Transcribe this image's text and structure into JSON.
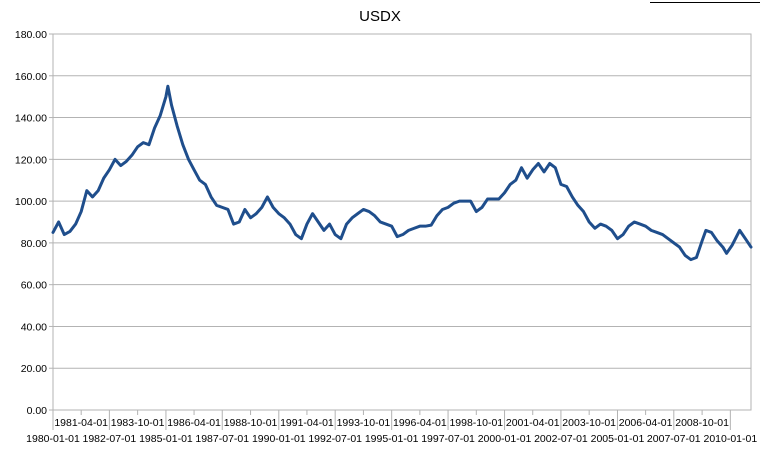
{
  "chart_data": {
    "type": "line",
    "title": "USDX",
    "xlabel": "",
    "ylabel": "",
    "ylim": [
      0,
      180
    ],
    "yticks": [
      "0.00",
      "20.00",
      "40.00",
      "60.00",
      "80.00",
      "100.00",
      "120.00",
      "140.00",
      "160.00",
      "180.00"
    ],
    "x_tick_labels_row1": [
      "1981-04-01",
      "1983-10-01",
      "1986-04-01",
      "1988-10-01",
      "1991-04-01",
      "1993-10-01",
      "1996-04-01",
      "1998-10-01",
      "2001-04-01",
      "2003-10-01",
      "2006-04-01",
      "2008-10-01"
    ],
    "x_tick_labels_row2": [
      "1980-01-01",
      "1982-07-01",
      "1985-01-01",
      "1987-07-01",
      "1990-01-01",
      "1992-07-01",
      "1995-01-01",
      "1997-07-01",
      "2000-01-01",
      "2002-07-01",
      "2005-01-01",
      "2007-07-01",
      "2010-01-01"
    ],
    "x_range": [
      "1980-01-01",
      "2010-12-01"
    ],
    "grid": true,
    "legend": "none",
    "line_color": "#1f4e8c",
    "series": [
      {
        "points": [
          [
            "1980-01-01",
            85.0
          ],
          [
            "1980-04-01",
            90.0
          ],
          [
            "1980-07-01",
            84.0
          ],
          [
            "1980-10-01",
            85.5
          ],
          [
            "1981-01-01",
            89.0
          ],
          [
            "1981-04-01",
            95.0
          ],
          [
            "1981-07-01",
            105.0
          ],
          [
            "1981-10-01",
            102.0
          ],
          [
            "1982-01-01",
            105.0
          ],
          [
            "1982-04-01",
            111.0
          ],
          [
            "1982-07-01",
            115.0
          ],
          [
            "1982-10-01",
            120.0
          ],
          [
            "1983-01-01",
            117.0
          ],
          [
            "1983-04-01",
            119.0
          ],
          [
            "1983-07-01",
            122.0
          ],
          [
            "1983-10-01",
            126.0
          ],
          [
            "1984-01-01",
            128.0
          ],
          [
            "1984-04-01",
            127.0
          ],
          [
            "1984-07-01",
            135.0
          ],
          [
            "1984-10-01",
            141.0
          ],
          [
            "1985-01-01",
            150.0
          ],
          [
            "1985-02-01",
            155.0
          ],
          [
            "1985-04-01",
            146.0
          ],
          [
            "1985-07-01",
            136.0
          ],
          [
            "1985-10-01",
            127.0
          ],
          [
            "1986-01-01",
            120.0
          ],
          [
            "1986-04-01",
            115.0
          ],
          [
            "1986-07-01",
            110.0
          ],
          [
            "1986-10-01",
            108.0
          ],
          [
            "1987-01-01",
            102.0
          ],
          [
            "1987-04-01",
            98.0
          ],
          [
            "1987-07-01",
            97.0
          ],
          [
            "1987-10-01",
            96.0
          ],
          [
            "1988-01-01",
            89.0
          ],
          [
            "1988-04-01",
            90.0
          ],
          [
            "1988-07-01",
            96.0
          ],
          [
            "1988-10-01",
            92.0
          ],
          [
            "1989-01-01",
            94.0
          ],
          [
            "1989-04-01",
            97.0
          ],
          [
            "1989-07-01",
            102.0
          ],
          [
            "1989-10-01",
            97.0
          ],
          [
            "1990-01-01",
            94.0
          ],
          [
            "1990-04-01",
            92.0
          ],
          [
            "1990-07-01",
            89.0
          ],
          [
            "1990-10-01",
            84.0
          ],
          [
            "1991-01-01",
            82.0
          ],
          [
            "1991-04-01",
            89.0
          ],
          [
            "1991-07-01",
            94.0
          ],
          [
            "1991-10-01",
            90.0
          ],
          [
            "1992-01-01",
            86.0
          ],
          [
            "1992-04-01",
            89.0
          ],
          [
            "1992-07-01",
            84.0
          ],
          [
            "1992-10-01",
            82.0
          ],
          [
            "1993-01-01",
            89.0
          ],
          [
            "1993-04-01",
            92.0
          ],
          [
            "1993-07-01",
            94.0
          ],
          [
            "1993-10-01",
            96.0
          ],
          [
            "1994-01-01",
            95.0
          ],
          [
            "1994-04-01",
            93.0
          ],
          [
            "1994-07-01",
            90.0
          ],
          [
            "1994-10-01",
            89.0
          ],
          [
            "1995-01-01",
            88.0
          ],
          [
            "1995-04-01",
            83.0
          ],
          [
            "1995-07-01",
            84.0
          ],
          [
            "1995-10-01",
            86.0
          ],
          [
            "1996-01-01",
            87.0
          ],
          [
            "1996-04-01",
            88.0
          ],
          [
            "1996-07-01",
            88.0
          ],
          [
            "1996-10-01",
            88.5
          ],
          [
            "1997-01-01",
            93.0
          ],
          [
            "1997-04-01",
            96.0
          ],
          [
            "1997-07-01",
            97.0
          ],
          [
            "1997-10-01",
            99.0
          ],
          [
            "1998-01-01",
            100.0
          ],
          [
            "1998-04-01",
            100.0
          ],
          [
            "1998-07-01",
            100.0
          ],
          [
            "1998-10-01",
            95.0
          ],
          [
            "1999-01-01",
            97.0
          ],
          [
            "1999-04-01",
            101.0
          ],
          [
            "1999-07-01",
            101.0
          ],
          [
            "1999-10-01",
            101.0
          ],
          [
            "2000-01-01",
            104.0
          ],
          [
            "2000-04-01",
            108.0
          ],
          [
            "2000-07-01",
            110.0
          ],
          [
            "2000-10-01",
            116.0
          ],
          [
            "2001-01-01",
            111.0
          ],
          [
            "2001-04-01",
            115.0
          ],
          [
            "2001-07-01",
            118.0
          ],
          [
            "2001-10-01",
            114.0
          ],
          [
            "2002-01-01",
            118.0
          ],
          [
            "2002-04-01",
            116.0
          ],
          [
            "2002-07-01",
            108.0
          ],
          [
            "2002-10-01",
            107.0
          ],
          [
            "2003-01-01",
            102.0
          ],
          [
            "2003-04-01",
            98.0
          ],
          [
            "2003-07-01",
            95.0
          ],
          [
            "2003-10-01",
            90.0
          ],
          [
            "2004-01-01",
            87.0
          ],
          [
            "2004-04-01",
            89.0
          ],
          [
            "2004-07-01",
            88.0
          ],
          [
            "2004-10-01",
            86.0
          ],
          [
            "2005-01-01",
            82.0
          ],
          [
            "2005-04-01",
            84.0
          ],
          [
            "2005-07-01",
            88.0
          ],
          [
            "2005-10-01",
            90.0
          ],
          [
            "2006-01-01",
            89.0
          ],
          [
            "2006-04-01",
            88.0
          ],
          [
            "2006-07-01",
            86.0
          ],
          [
            "2006-10-01",
            85.0
          ],
          [
            "2007-01-01",
            84.0
          ],
          [
            "2007-04-01",
            82.0
          ],
          [
            "2007-07-01",
            80.0
          ],
          [
            "2007-10-01",
            78.0
          ],
          [
            "2008-01-01",
            74.0
          ],
          [
            "2008-04-01",
            72.0
          ],
          [
            "2008-07-01",
            73.0
          ],
          [
            "2008-10-01",
            81.0
          ],
          [
            "2008-12-01",
            86.0
          ],
          [
            "2009-03-01",
            85.0
          ],
          [
            "2009-06-01",
            81.0
          ],
          [
            "2009-09-01",
            78.0
          ],
          [
            "2009-11-01",
            75.0
          ],
          [
            "2010-02-01",
            79.0
          ],
          [
            "2010-06-01",
            86.0
          ],
          [
            "2010-09-01",
            82.0
          ],
          [
            "2010-12-01",
            78.0
          ]
        ]
      }
    ]
  }
}
